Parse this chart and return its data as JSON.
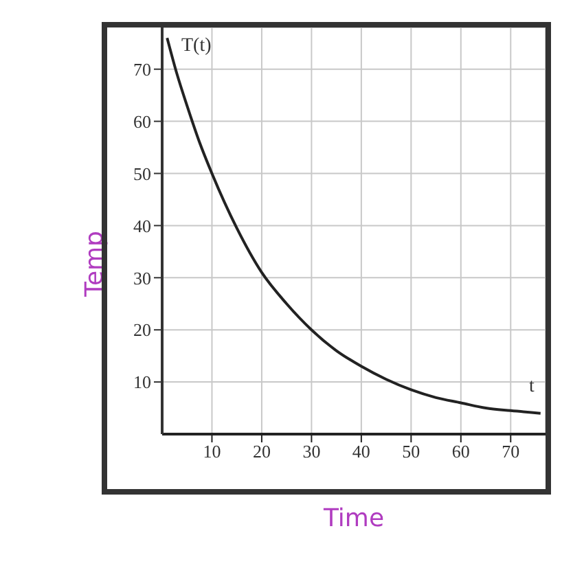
{
  "chart_data": {
    "type": "line",
    "xlabel": "Time",
    "ylabel": "Temp",
    "annotations": [
      "T(t)",
      "t"
    ],
    "x": [
      1,
      3,
      5,
      7.5,
      10,
      15,
      20,
      25,
      30,
      35,
      40,
      45,
      50,
      55,
      60,
      65,
      70,
      76
    ],
    "series": [
      {
        "color": "#222222",
        "values": [
          76,
          69,
          63,
          56,
          50,
          39.5,
          31,
          25,
          20,
          16,
          13,
          10.5,
          8.5,
          7,
          6,
          5,
          4.5,
          4
        ]
      }
    ],
    "xlim": [
      0,
      77
    ],
    "ylim": [
      0,
      78
    ],
    "xticks": [
      10,
      20,
      30,
      40,
      50,
      60,
      70
    ],
    "yticks": [
      10,
      20,
      30,
      40,
      50,
      60,
      70
    ],
    "grid": true,
    "marker": "none",
    "line_style": "solid"
  }
}
